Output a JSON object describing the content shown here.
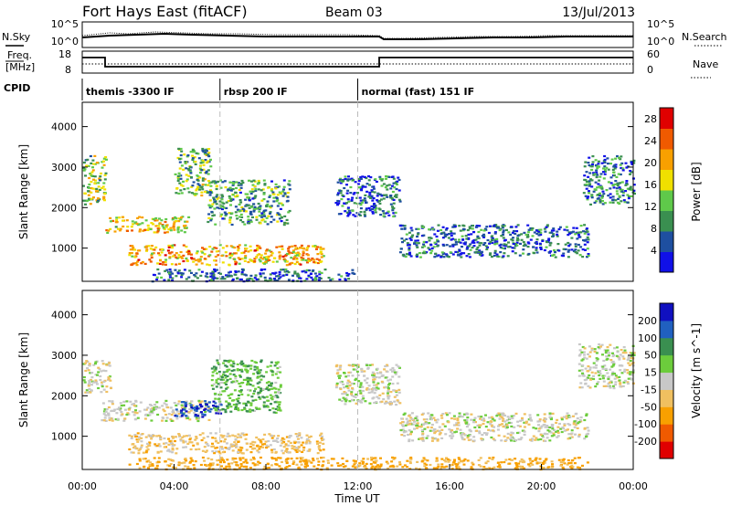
{
  "header": {
    "station": "Fort Hays East (fitACF)",
    "beam": "Beam 03",
    "date": "13/Jul/2013"
  },
  "colors": {
    "power_scale": [
      "#1010e8",
      "#1e4fa0",
      "#3a8f50",
      "#5fc94a",
      "#f0e000",
      "#f8a000",
      "#f05a00",
      "#e00000"
    ],
    "velocity_scale": [
      "#e00000",
      "#f05a00",
      "#f8a000",
      "#f0c060",
      "#c8c8c8",
      "#6ccc3c",
      "#3a8f50",
      "#2060c0",
      "#1010c0"
    ],
    "ground_scatter": "#c8c8c8"
  },
  "noise_panel": {
    "left_label": "N.Sky",
    "right_label": "N.Search",
    "left_ticks": [
      "10^5",
      "10^0"
    ],
    "right_ticks": [
      "10^5",
      "10^0"
    ]
  },
  "freq_panel": {
    "left_label_line1": "Freq.",
    "left_label_line2": "[MHz]",
    "right_label": "Nave",
    "left_ticks": [
      "18",
      "8"
    ],
    "right_ticks": [
      "60",
      "0"
    ]
  },
  "cpid": {
    "label": "CPID",
    "segments": [
      {
        "start_hour": 0,
        "label": "themis -3300 IF"
      },
      {
        "start_hour": 6,
        "label": "rbsp 200 IF"
      },
      {
        "start_hour": 12,
        "label": "normal (fast) 151 IF"
      }
    ]
  },
  "chart_data": [
    {
      "type": "heatmap",
      "title": "",
      "xlabel": "",
      "ylabel": "Slant Range [km]",
      "xlim": [
        0,
        24
      ],
      "ylim": [
        180,
        4600
      ],
      "y_ticks": [
        1000,
        2000,
        3000,
        4000
      ],
      "colorbar_label": "Power [dB]",
      "colorbar_ticks": [
        4,
        8,
        12,
        16,
        20,
        24,
        28
      ],
      "colorbar_range": [
        0,
        30
      ],
      "regions": [
        {
          "t_start": 0.0,
          "t_end": 1.0,
          "r_start": 2100,
          "r_end": 3300,
          "value": 14
        },
        {
          "t_start": 1.0,
          "t_end": 4.6,
          "r_start": 1400,
          "r_end": 1800,
          "value": 18
        },
        {
          "t_start": 2.0,
          "t_end": 10.5,
          "r_start": 600,
          "r_end": 1100,
          "value": 20
        },
        {
          "t_start": 4.0,
          "t_end": 5.6,
          "r_start": 2300,
          "r_end": 3500,
          "value": 12
        },
        {
          "t_start": 5.4,
          "t_end": 9.0,
          "r_start": 1600,
          "r_end": 2700,
          "value": 10
        },
        {
          "t_start": 11.0,
          "t_end": 13.8,
          "r_start": 1800,
          "r_end": 2800,
          "value": 6
        },
        {
          "t_start": 13.8,
          "t_end": 22.0,
          "r_start": 800,
          "r_end": 1600,
          "value": 6
        },
        {
          "t_start": 21.8,
          "t_end": 24.0,
          "r_start": 2100,
          "r_end": 3300,
          "value": 8
        },
        {
          "t_start": 3.0,
          "t_end": 12.0,
          "r_start": 200,
          "r_end": 500,
          "value": 6
        }
      ]
    },
    {
      "type": "heatmap",
      "title": "",
      "xlabel": "Time UT",
      "ylabel": "Slant Range [km]",
      "xlim": [
        0,
        24
      ],
      "ylim": [
        180,
        4600
      ],
      "x_ticks": [
        "00:00",
        "04:00",
        "08:00",
        "12:00",
        "16:00",
        "20:00",
        "00:00"
      ],
      "y_ticks": [
        1000,
        2000,
        3000,
        4000
      ],
      "colorbar_label": "Velocity [m s^-1]",
      "colorbar_ticks": [
        -200,
        -100,
        -50,
        -15,
        15,
        50,
        100,
        200
      ],
      "regions": [
        {
          "t_start": 0.0,
          "t_end": 1.2,
          "r_start": 2100,
          "r_end": 2900,
          "value": 0
        },
        {
          "t_start": 0.8,
          "t_end": 5.5,
          "r_start": 1400,
          "r_end": 1900,
          "value": 0
        },
        {
          "t_start": 2.0,
          "t_end": 10.5,
          "r_start": 600,
          "r_end": 1100,
          "value": -30
        },
        {
          "t_start": 4.0,
          "t_end": 6.0,
          "r_start": 1500,
          "r_end": 1900,
          "value": 200
        },
        {
          "t_start": 5.6,
          "t_end": 8.6,
          "r_start": 1600,
          "r_end": 2900,
          "value": 40
        },
        {
          "t_start": 11.0,
          "t_end": 13.8,
          "r_start": 1800,
          "r_end": 2800,
          "value": 0
        },
        {
          "t_start": 13.8,
          "t_end": 22.0,
          "r_start": 900,
          "r_end": 1600,
          "value": 0
        },
        {
          "t_start": 21.6,
          "t_end": 24.0,
          "r_start": 2200,
          "r_end": 3300,
          "value": 0
        },
        {
          "t_start": 2.0,
          "t_end": 22.0,
          "r_start": 200,
          "r_end": 500,
          "value": -60
        }
      ]
    }
  ]
}
